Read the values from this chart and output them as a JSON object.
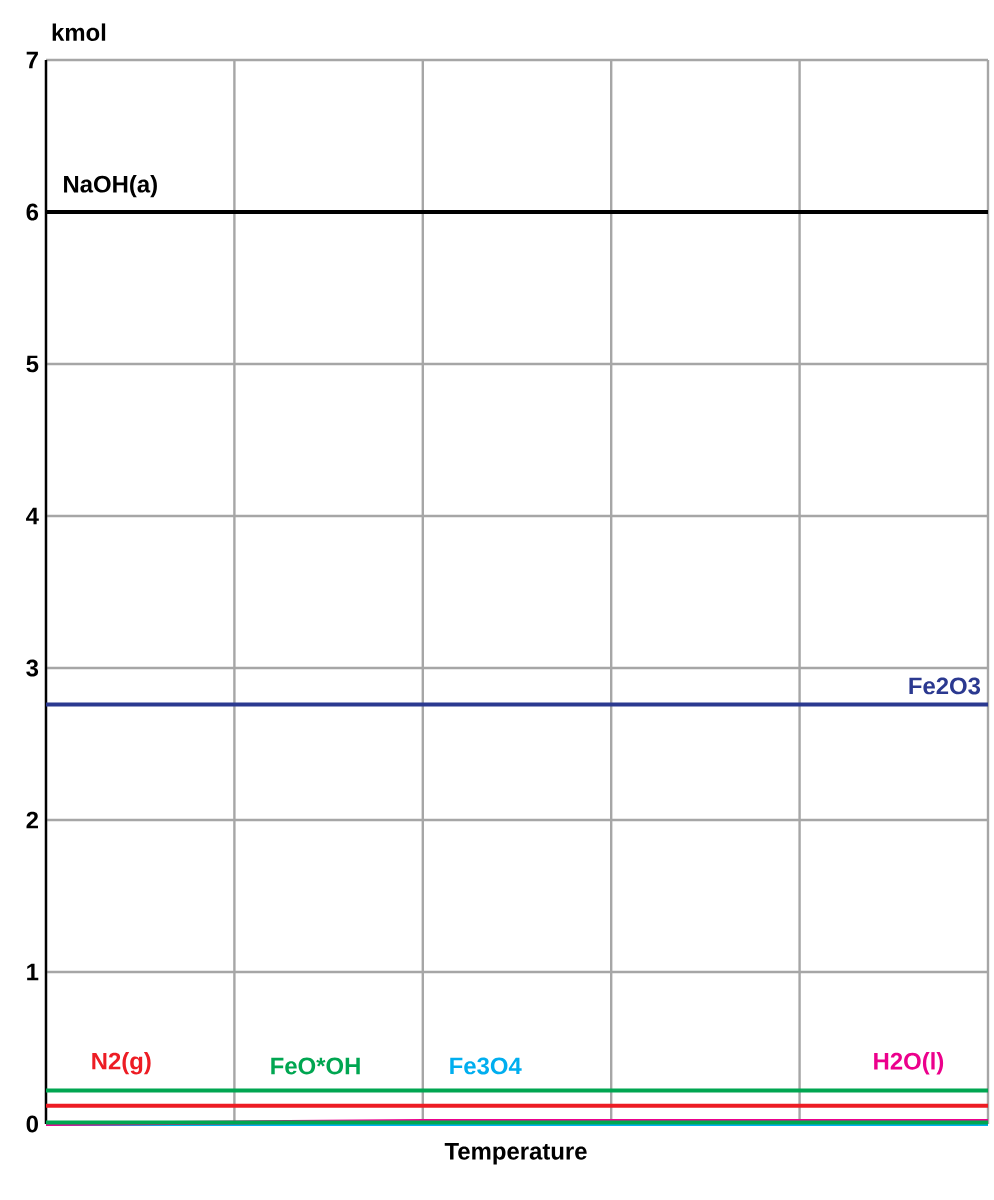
{
  "chart_data": {
    "type": "line",
    "xlabel": "Temperature",
    "ylabel": "kmol",
    "categories": [
      null,
      null,
      null,
      null,
      null,
      null
    ],
    "series": [
      {
        "name": "NaOH(a)",
        "color": "#000000",
        "values": [
          6,
          6,
          6,
          6,
          6,
          6
        ]
      },
      {
        "name": "Fe2O3",
        "color": "#2b3990",
        "values": [
          2.76,
          2.76,
          2.76,
          2.76,
          2.76,
          2.76
        ]
      },
      {
        "name": "N2(g)",
        "color": "#ed1c24",
        "values": [
          0.12,
          0.12,
          0.12,
          0.12,
          0.12,
          0.12
        ]
      },
      {
        "name": "FeO*OH",
        "color": "#00a651",
        "values": [
          0.22,
          0.22,
          0.22,
          0.22,
          0.22,
          0.22
        ]
      },
      {
        "name": "Fe3O4",
        "color": "#00aeef",
        "values": [
          0,
          0,
          0,
          0,
          0,
          0
        ]
      },
      {
        "name": "H2O(l)",
        "color": "#ec008c",
        "values": [
          0,
          0.01,
          0.02,
          0.02,
          0.02,
          0.02
        ]
      },
      {
        "color": "#00a651",
        "values": [
          0.01,
          0.01,
          0.01,
          0.01,
          0.01,
          0.01
        ]
      }
    ],
    "ylim": [
      0,
      7
    ],
    "yticks": [
      0,
      1,
      2,
      3,
      4,
      5,
      6,
      7
    ],
    "grid": true,
    "tick_labels": "y",
    "marker": "none"
  }
}
